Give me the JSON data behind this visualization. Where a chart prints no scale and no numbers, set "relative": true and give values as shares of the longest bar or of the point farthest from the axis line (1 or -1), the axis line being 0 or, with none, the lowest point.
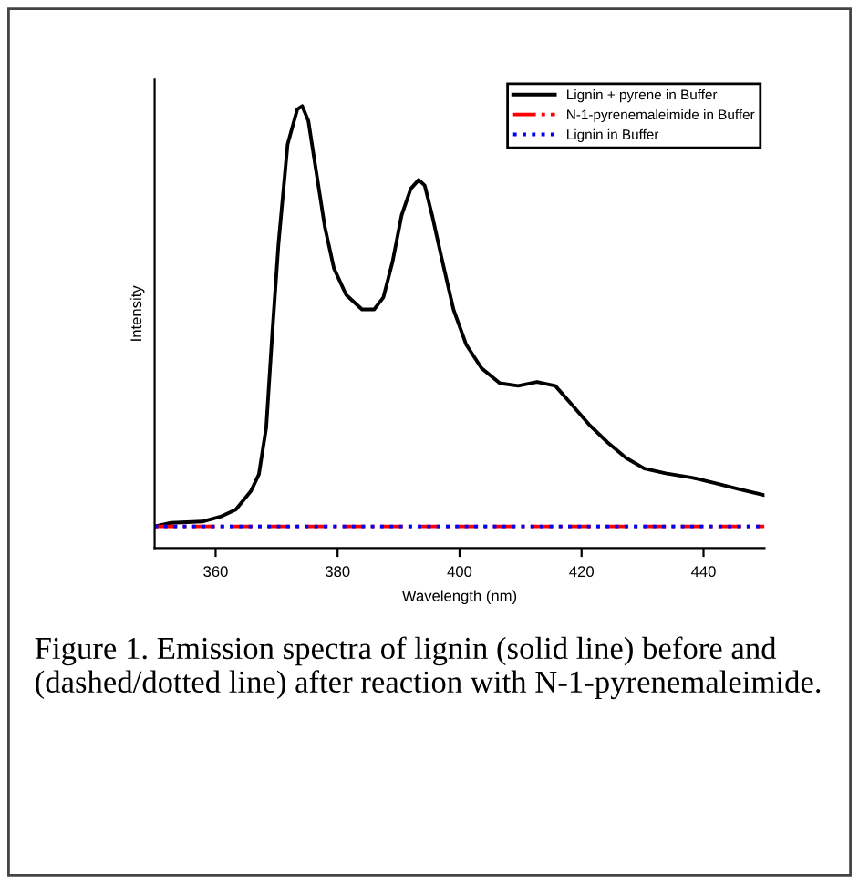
{
  "chart_data": {
    "type": "line",
    "xlabel": "Wavelength (nm)",
    "ylabel": "Intensity",
    "relative": true,
    "xlim": [
      350,
      450
    ],
    "xticks": [
      360,
      380,
      400,
      420,
      440
    ],
    "legend": "top right",
    "grid": false,
    "marker": "none",
    "series": [
      {
        "name": "Lignin + pyrene in Buffer",
        "color": "#000000",
        "line_style": "solid",
        "x": [
          350,
          352.7,
          357.8,
          360.8,
          363.3,
          365.8,
          367.1,
          368.3,
          369.3,
          370.3,
          371.8,
          373.4,
          374.2,
          375.2,
          376.4,
          377.9,
          379.4,
          381.4,
          384.0,
          386.0,
          387.5,
          389.0,
          390.5,
          392.0,
          393.3,
          394.3,
          395.5,
          397.0,
          399.0,
          401.1,
          403.6,
          406.6,
          409.6,
          412.7,
          415.7,
          418.7,
          421.2,
          424.2,
          427.3,
          430.3,
          433.8,
          437.9,
          441.9,
          445.9,
          449.9
        ],
        "values": [
          0.049,
          0.057,
          0.06,
          0.071,
          0.087,
          0.129,
          0.167,
          0.273,
          0.487,
          0.687,
          0.913,
          0.993,
          1.0,
          0.967,
          0.86,
          0.727,
          0.633,
          0.573,
          0.54,
          0.54,
          0.567,
          0.647,
          0.753,
          0.813,
          0.833,
          0.82,
          0.753,
          0.66,
          0.54,
          0.46,
          0.407,
          0.373,
          0.367,
          0.376,
          0.367,
          0.32,
          0.28,
          0.24,
          0.204,
          0.18,
          0.169,
          0.16,
          0.147,
          0.133,
          0.12
        ]
      },
      {
        "name": "N-1-pyrenemaleimide in Buffer",
        "color": "#ff0000",
        "line_style": "dashed",
        "x": [
          350,
          450
        ],
        "values": [
          0.049,
          0.049
        ]
      },
      {
        "name": "Lignin in Buffer",
        "color": "#0000ff",
        "line_style": "dotted",
        "x": [
          350,
          450
        ],
        "values": [
          0.049,
          0.049
        ]
      }
    ],
    "annotations": [
      "Figure 1. Emission spectra of lignin (solid line) before and (dashed/dotted line) after reaction with N-1-pyrenemaleimide."
    ]
  }
}
